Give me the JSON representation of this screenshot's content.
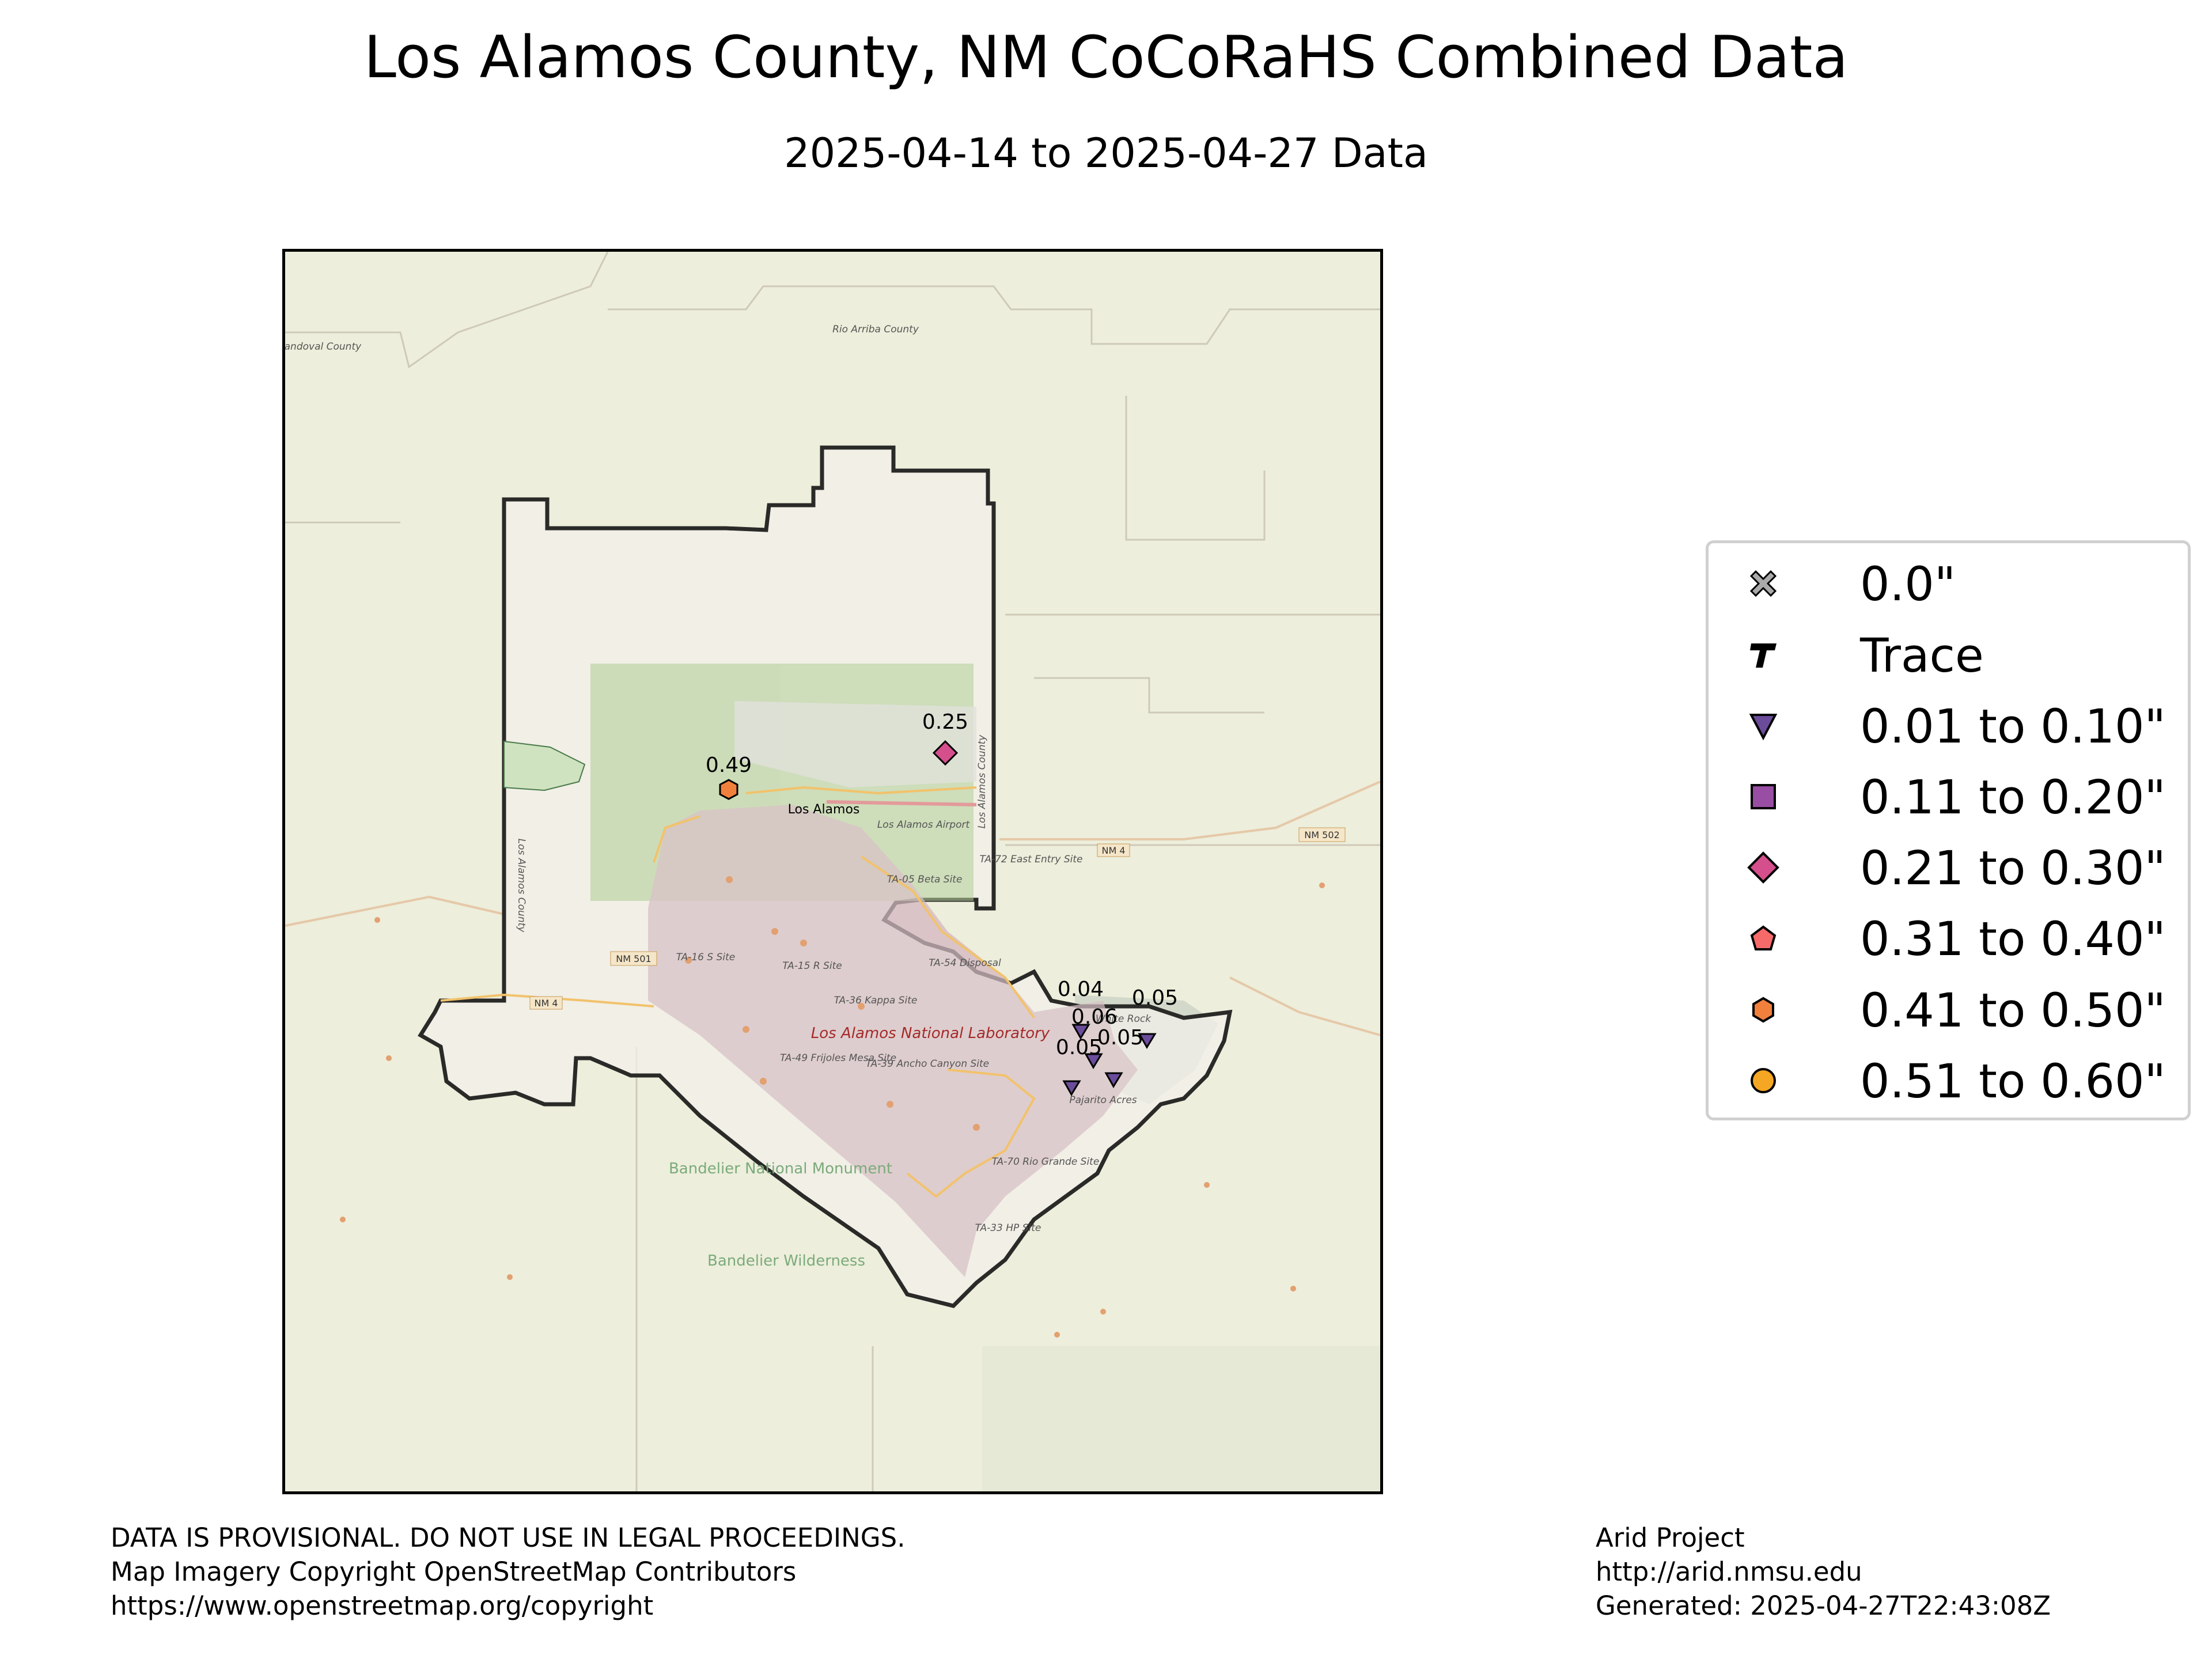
{
  "title": "Los Alamos County, NM CoCoRaHS Combined Data",
  "subtitle": "2025-04-14 to 2025-04-27 Data",
  "map": {
    "place_labels": {
      "town": "Los Alamos",
      "airport": "Los Alamos Airport",
      "county_left": "Los Alamos County",
      "county_right": "Los Alamos County",
      "rio_arriba": "Rio Arriba County",
      "sandoval": "Sandoval County",
      "white_rock": "White Rock",
      "pajarito": "Pajarito Acres",
      "lab": "Los Alamos National Laboratory",
      "bandelier_monument": "Bandelier National Monument",
      "bandelier_wilderness": "Bandelier Wilderness",
      "ta05": "TA-05 Beta Site",
      "ta15": "TA-15 R Site",
      "ta16": "TA-16 S Site",
      "ta36": "TA-36 Kappa Site",
      "ta39": "TA-39 Ancho Canyon Site",
      "ta49": "TA-49 Frijoles Mesa Site",
      "ta54": "TA-54 Disposal",
      "ta70": "TA-70 Rio Grande Site",
      "ta33": "TA-33 HP Site",
      "ta72": "TA-72 East Entry Site",
      "nm4_a": "NM 4",
      "nm4_b": "NM 4",
      "nm501": "NM 501",
      "nm502": "NM 502"
    },
    "stations": [
      {
        "value": "0.25",
        "category": "0.21 to 0.30\""
      },
      {
        "value": "0.49",
        "category": "0.41 to 0.50\""
      },
      {
        "value": "0.04",
        "category": "0.01 to 0.10\""
      },
      {
        "value": "0.06",
        "category": "0.01 to 0.10\""
      },
      {
        "value": "0.05",
        "category": "0.01 to 0.10\""
      },
      {
        "value": "0.05",
        "category": "0.01 to 0.10\""
      },
      {
        "value": "0.05",
        "category": "0.01 to 0.10\""
      }
    ]
  },
  "legend": {
    "items": [
      {
        "label": "0.0\"",
        "icon": "x-marker-icon",
        "color": "#aaaaaa"
      },
      {
        "label": "Trace",
        "icon": "trace-t-icon",
        "color": "#000000"
      },
      {
        "label": "0.01 to 0.10\"",
        "icon": "triangle-down-icon",
        "color": "#6b4c9a"
      },
      {
        "label": "0.11 to 0.20\"",
        "icon": "square-icon",
        "color": "#984ea3"
      },
      {
        "label": "0.21 to 0.30\"",
        "icon": "diamond-icon",
        "color": "#d44f8c"
      },
      {
        "label": "0.31 to 0.40\"",
        "icon": "pentagon-icon",
        "color": "#f76a6a"
      },
      {
        "label": "0.41 to 0.50\"",
        "icon": "hexagon-icon",
        "color": "#f2803d"
      },
      {
        "label": "0.51 to 0.60\"",
        "icon": "circle-icon",
        "color": "#f5a623"
      }
    ]
  },
  "footer": {
    "left_line1": "DATA IS PROVISIONAL. DO NOT USE IN LEGAL PROCEEDINGS.",
    "left_line2": "Map Imagery Copyright OpenStreetMap Contributors",
    "left_line3": "https://www.openstreetmap.org/copyright",
    "right_line1": "Arid Project",
    "right_line2": "http://arid.nmsu.edu",
    "right_line3": "Generated: 2025-04-27T22:43:08Z"
  }
}
